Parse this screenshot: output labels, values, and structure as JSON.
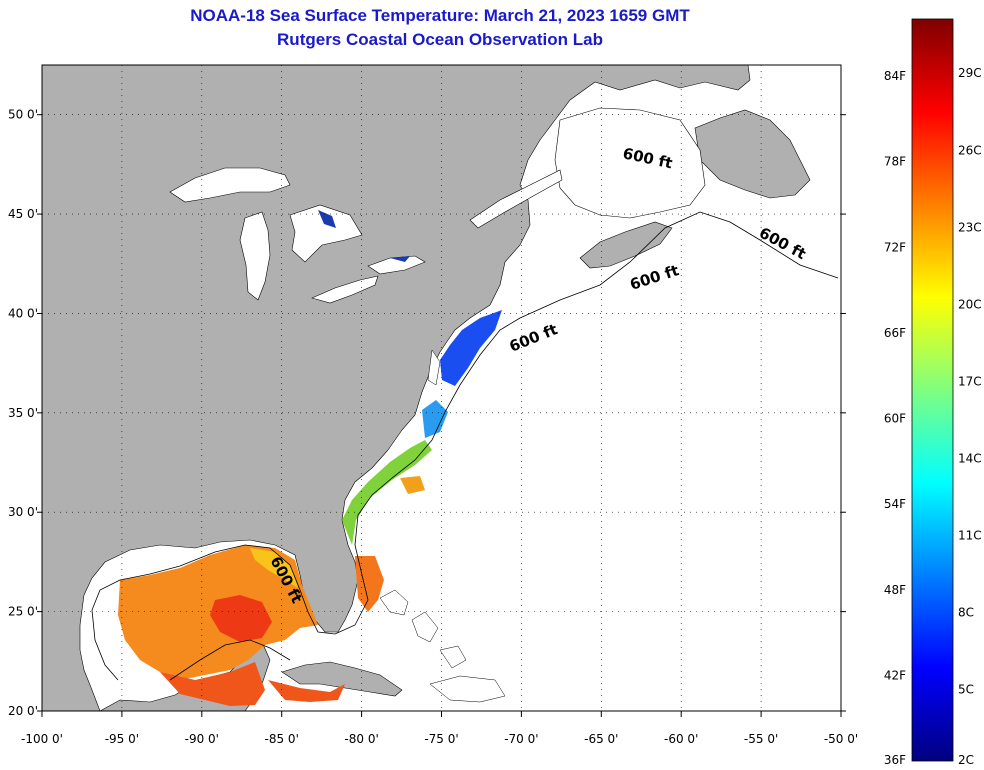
{
  "header": {
    "title": "NOAA-18 Sea Surface Temperature:  March 21, 2023 1659 GMT",
    "subtitle": "Rutgers Coastal Ocean Observation Lab"
  },
  "map": {
    "lon_range": [
      -100,
      -50
    ],
    "lat_range": [
      20,
      52.5
    ],
    "lon_ticks": [
      {
        "v": -100,
        "label": "-100 0'"
      },
      {
        "v": -95,
        "label": "-95 0'"
      },
      {
        "v": -90,
        "label": "-90 0'"
      },
      {
        "v": -85,
        "label": "-85 0'"
      },
      {
        "v": -80,
        "label": "-80 0'"
      },
      {
        "v": -75,
        "label": "-75 0'"
      },
      {
        "v": -70,
        "label": "-70 0'"
      },
      {
        "v": -65,
        "label": "-65 0'"
      },
      {
        "v": -60,
        "label": "-60 0'"
      },
      {
        "v": -55,
        "label": "-55 0'"
      },
      {
        "v": -50,
        "label": "-50 0'"
      }
    ],
    "lat_ticks": [
      {
        "v": 20,
        "label": "20 0'"
      },
      {
        "v": 25,
        "label": "25 0'"
      },
      {
        "v": 30,
        "label": "30 0'"
      },
      {
        "v": 35,
        "label": "35 0'"
      },
      {
        "v": 40,
        "label": "40 0'"
      },
      {
        "v": 45,
        "label": "45 0'"
      },
      {
        "v": 50,
        "label": "50 0'"
      }
    ],
    "contour_label": "600 ft",
    "land_color": "#b0b0b0",
    "no_data_color": "#ffffff"
  },
  "colorbar": {
    "ticks_f": [
      {
        "v": 36,
        "label": "36F"
      },
      {
        "v": 42,
        "label": "42F"
      },
      {
        "v": 48,
        "label": "48F"
      },
      {
        "v": 54,
        "label": "54F"
      },
      {
        "v": 60,
        "label": "60F"
      },
      {
        "v": 66,
        "label": "66F"
      },
      {
        "v": 72,
        "label": "72F"
      },
      {
        "v": 78,
        "label": "78F"
      },
      {
        "v": 84,
        "label": "84F"
      }
    ],
    "ticks_c": [
      {
        "v": 2,
        "label": "2C"
      },
      {
        "v": 5,
        "label": "5C"
      },
      {
        "v": 8,
        "label": "8C"
      },
      {
        "v": 11,
        "label": "11C"
      },
      {
        "v": 14,
        "label": "14C"
      },
      {
        "v": 17,
        "label": "17C"
      },
      {
        "v": 20,
        "label": "20C"
      },
      {
        "v": 23,
        "label": "23C"
      },
      {
        "v": 26,
        "label": "26C"
      },
      {
        "v": 29,
        "label": "29C"
      }
    ],
    "range_f": [
      36,
      88
    ],
    "colors": [
      "#00007f",
      "#0000ff",
      "#007fff",
      "#00ffff",
      "#7fff7f",
      "#ffff00",
      "#ff7f00",
      "#ff0000",
      "#7f0000"
    ]
  }
}
